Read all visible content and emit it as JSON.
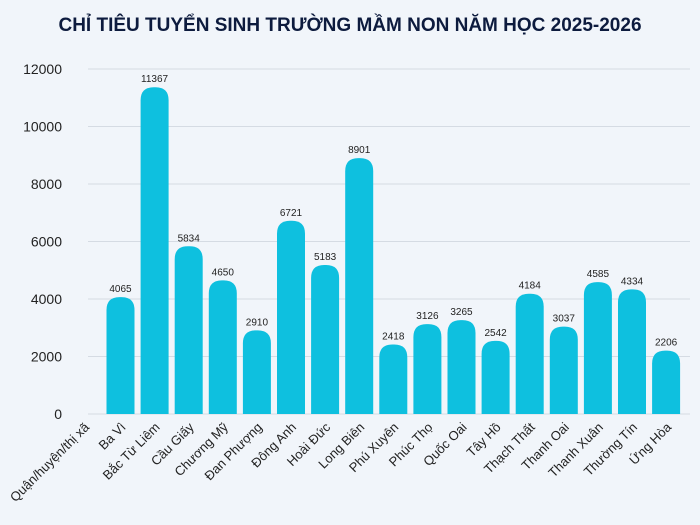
{
  "chart_data": {
    "type": "bar",
    "title": "CHỈ TIÊU TUYỂN SINH TRƯỜNG MẦM NON NĂM HỌC 2025-2026",
    "xlabel": "Quận/huyện/thị xã",
    "ylabel": "",
    "ylim": [
      0,
      12000
    ],
    "yticks": [
      0,
      2000,
      4000,
      6000,
      8000,
      10000,
      12000
    ],
    "grid": true,
    "bar_color": "#0ec0df",
    "categories": [
      "Ba Vì",
      "Bắc Từ Liêm",
      "Cầu Giấy",
      "Chương Mỹ",
      "Đan Phượng",
      "Đông Anh",
      "Hoài Đức",
      "Long Biên",
      "Phú Xuyên",
      "Phúc Thọ",
      "Quốc Oai",
      "Tây Hồ",
      "Thạch Thất",
      "Thanh Oai",
      "Thanh Xuân",
      "Thường Tín",
      "Ứng Hòa"
    ],
    "values": [
      4065,
      11367,
      5834,
      4650,
      2910,
      6721,
      5183,
      8901,
      2418,
      3126,
      3265,
      2542,
      4184,
      3037,
      4585,
      4334,
      2206
    ]
  }
}
